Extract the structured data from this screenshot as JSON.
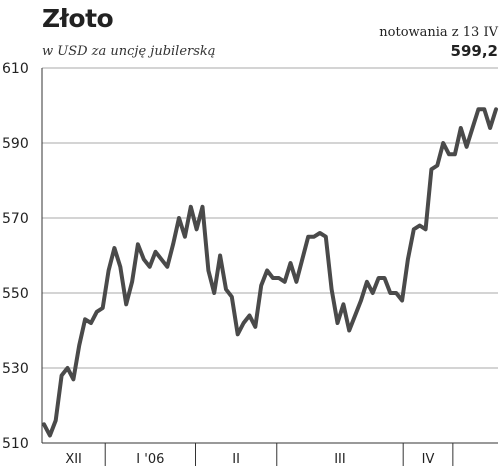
{
  "header": {
    "title": "Złoto",
    "subtitle": "w USD za uncję jubilerską",
    "quote_label": "notowania z 13 IV",
    "quote_value": "599,2"
  },
  "colors": {
    "line": "#4a4a4a",
    "grid": "#aaaaaa",
    "axis": "#333333",
    "text": "#222222"
  },
  "chart_data": {
    "type": "line",
    "title": "Złoto",
    "ylabel": "w USD za uncję jubilerską",
    "ylim": [
      510,
      610
    ],
    "yticks": [
      "610",
      "590",
      "570",
      "550",
      "530",
      "510"
    ],
    "ytick_values": [
      610,
      590,
      570,
      550,
      530,
      510
    ],
    "periods": [
      "XII",
      "I '06",
      "II",
      "III",
      "IV"
    ],
    "period_boundaries": [
      0,
      14,
      34,
      52,
      80,
      91,
      101
    ],
    "grid": true,
    "series": [
      {
        "values": [
          515,
          512,
          516,
          528,
          530,
          527,
          536,
          543,
          542,
          545,
          546,
          556,
          562,
          557,
          547,
          553,
          563,
          559,
          557,
          561,
          559,
          557,
          563,
          570,
          565,
          573,
          567,
          573,
          556,
          550,
          560,
          551,
          549,
          539,
          542,
          544,
          541,
          552,
          556,
          554,
          554,
          553,
          558,
          553,
          559,
          565,
          565,
          566,
          565,
          551,
          542,
          547,
          540,
          544,
          548,
          553,
          550,
          554,
          554,
          550,
          550,
          548,
          559,
          567,
          568,
          567,
          583,
          584,
          590,
          587,
          587,
          594,
          589,
          594,
          599,
          599,
          594,
          599
        ]
      }
    ]
  }
}
